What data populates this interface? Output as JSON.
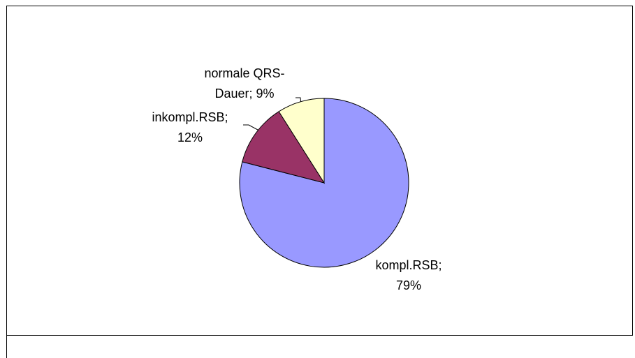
{
  "chart_data": {
    "type": "pie",
    "categories": [
      "kompl.RSB;",
      "inkompl.RSB;",
      "normale QRS-Dauer;"
    ],
    "values": [
      79,
      12,
      9
    ],
    "value_labels": [
      "79%",
      "12%",
      "9%"
    ],
    "colors": [
      "#9999ff",
      "#993366",
      "#ffffcc"
    ]
  }
}
